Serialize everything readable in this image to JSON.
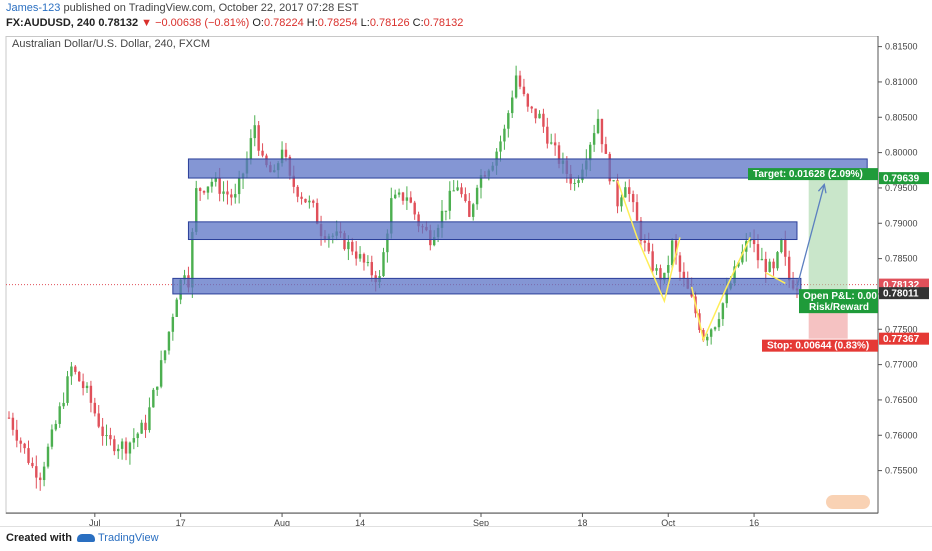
{
  "header": {
    "author": "James-123",
    "published_text": "published on TradingView.com, October 22, 2017 07:28 EST",
    "symbol": "FX:AUDUSD, 240",
    "price": "0.78132",
    "change": "▼ −0.00638 (−0.81%)",
    "open_label": "O:",
    "open": "0.78224",
    "high_label": "H:",
    "high": "0.78254",
    "low_label": "L:",
    "low": "0.78126",
    "close_label": "C:",
    "close": "0.78132"
  },
  "chart_title": "Australian Dollar/U.S. Dollar, 240, FXCM",
  "footer": {
    "created_with": "Created with",
    "brand": "TradingView"
  },
  "colors": {
    "up": "#4caf50",
    "down": "#e0505a",
    "zone_fill": "#5b73c6",
    "zone_border": "#2b3f99",
    "target": "#1f9b3a",
    "stop": "#e53935",
    "price_tag": "#e0505a",
    "entry_tag": "#333333",
    "swing": "#ffee58",
    "arrow": "#5b7fc0"
  },
  "chart_data": {
    "type": "candlestick",
    "y_axis": {
      "range": [
        0.749,
        0.8165
      ],
      "ticks": [
        "0.81500",
        "0.81000",
        "0.80500",
        "0.80000",
        "0.79500",
        "0.79000",
        "0.78500",
        "0.78000",
        "0.77500",
        "0.77000",
        "0.76500",
        "0.76000",
        "0.75500"
      ]
    },
    "x_axis": {
      "ticks": [
        {
          "label": "Jul",
          "i": 22
        },
        {
          "label": "17",
          "i": 44
        },
        {
          "label": "Aug",
          "i": 70
        },
        {
          "label": "14",
          "i": 90
        },
        {
          "label": "Sep",
          "i": 121
        },
        {
          "label": "18",
          "i": 147
        },
        {
          "label": "Oct",
          "i": 169
        },
        {
          "label": "16",
          "i": 191
        }
      ]
    },
    "price_path": [
      [
        0,
        0.7625
      ],
      [
        6,
        0.7555
      ],
      [
        8,
        0.7545
      ],
      [
        12,
        0.7615
      ],
      [
        16,
        0.7695
      ],
      [
        20,
        0.766
      ],
      [
        25,
        0.759
      ],
      [
        30,
        0.7585
      ],
      [
        35,
        0.7615
      ],
      [
        40,
        0.772
      ],
      [
        43,
        0.78
      ],
      [
        45,
        0.7835
      ],
      [
        46,
        0.782
      ],
      [
        48,
        0.7945
      ],
      [
        52,
        0.796
      ],
      [
        55,
        0.7945
      ],
      [
        58,
        0.7935
      ],
      [
        61,
        0.799
      ],
      [
        63,
        0.804
      ],
      [
        65,
        0.7985
      ],
      [
        68,
        0.7965
      ],
      [
        70,
        0.801
      ],
      [
        72,
        0.796
      ],
      [
        75,
        0.794
      ],
      [
        78,
        0.792
      ],
      [
        80,
        0.789
      ],
      [
        84,
        0.788
      ],
      [
        88,
        0.7865
      ],
      [
        92,
        0.7835
      ],
      [
        95,
        0.782
      ],
      [
        98,
        0.793
      ],
      [
        102,
        0.794
      ],
      [
        105,
        0.79
      ],
      [
        108,
        0.788
      ],
      [
        112,
        0.7925
      ],
      [
        115,
        0.7955
      ],
      [
        118,
        0.7905
      ],
      [
        120,
        0.796
      ],
      [
        124,
        0.799
      ],
      [
        127,
        0.803
      ],
      [
        130,
        0.811
      ],
      [
        133,
        0.806
      ],
      [
        136,
        0.805
      ],
      [
        139,
        0.801
      ],
      [
        142,
        0.798
      ],
      [
        145,
        0.7955
      ],
      [
        148,
        0.8
      ],
      [
        151,
        0.805
      ],
      [
        153,
        0.799
      ],
      [
        156,
        0.793
      ],
      [
        158,
        0.796
      ],
      [
        161,
        0.79
      ],
      [
        164,
        0.785
      ],
      [
        166,
        0.783
      ],
      [
        168,
        0.782
      ],
      [
        170,
        0.787
      ],
      [
        172,
        0.783
      ],
      [
        175,
        0.779
      ],
      [
        178,
        0.774
      ],
      [
        181,
        0.776
      ],
      [
        184,
        0.78
      ],
      [
        187,
        0.7845
      ],
      [
        190,
        0.788
      ],
      [
        192,
        0.785
      ],
      [
        194,
        0.784
      ],
      [
        196,
        0.783
      ],
      [
        198,
        0.787
      ],
      [
        200,
        0.782
      ],
      [
        202,
        0.7813
      ]
    ],
    "zones": [
      {
        "top": 0.7991,
        "bottom": 0.7964,
        "i_start": 46,
        "i_end": 220
      },
      {
        "top": 0.7902,
        "bottom": 0.7877,
        "i_start": 46,
        "i_end": 202
      },
      {
        "top": 0.7822,
        "bottom": 0.78,
        "i_start": 42,
        "i_end": 203
      }
    ],
    "position": {
      "entry": 0.78011,
      "target": 0.79639,
      "stop": 0.77367,
      "i_start": 205,
      "i_end": 215,
      "target_label": "Target: 0.01628 (2.09%)",
      "stop_label": "Stop: 0.00644 (0.83%)",
      "pnl_label": "Open P&L: 0.00",
      "rr_label": "Risk/Reward"
    },
    "swing_legs": [
      [
        [
          156,
          0.796
        ],
        [
          161,
          0.788
        ],
        [
          168,
          0.779
        ],
        [
          172,
          0.788
        ]
      ],
      [
        [
          175,
          0.781
        ],
        [
          178,
          0.7735
        ],
        [
          184,
          0.781
        ],
        [
          190,
          0.788
        ]
      ],
      [
        [
          194,
          0.783
        ],
        [
          199,
          0.7815
        ]
      ]
    ],
    "projection": [
      [
        202,
        0.781
      ],
      [
        209,
        0.7955
      ]
    ],
    "price_tags": [
      {
        "value": 0.79639,
        "text": "0.79639",
        "kind": "target"
      },
      {
        "value": 0.78132,
        "text": "0.78132",
        "kind": "price"
      },
      {
        "value": 0.78011,
        "text": "0.78011",
        "kind": "entry"
      },
      {
        "value": 0.77367,
        "text": "0.77367",
        "kind": "stop"
      }
    ]
  }
}
